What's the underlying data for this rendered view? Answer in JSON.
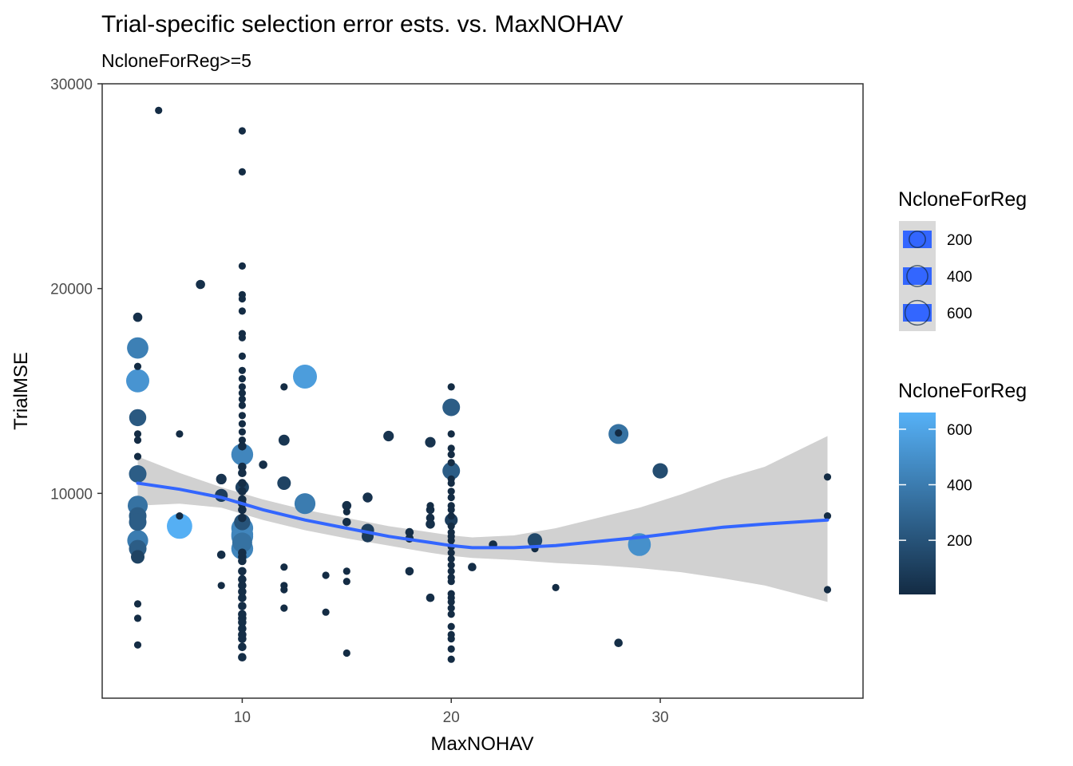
{
  "chart_data": {
    "type": "scatter",
    "title": "Trial-specific selection error ests. vs. MaxNOHAV",
    "subtitle": "NcloneForReg>=5",
    "xlabel": "MaxNOHAV",
    "ylabel": "TrialMSE",
    "xlim": [
      3.3,
      39.7
    ],
    "ylim": [
      0,
      30000
    ],
    "x_ticks": [
      {
        "value": 10,
        "label": "10"
      },
      {
        "value": 20,
        "label": "20"
      },
      {
        "value": 30,
        "label": "30"
      }
    ],
    "y_ticks": [
      {
        "value": 10000,
        "label": "10000"
      },
      {
        "value": 20000,
        "label": "20000"
      },
      {
        "value": 30000,
        "label": "30000"
      }
    ],
    "grid": false,
    "legend_position": "right",
    "colors": {
      "low": "#132b43",
      "high": "#56b1f7",
      "smooth_line": "#3366ff",
      "ribbon": "#b3b3b3"
    },
    "legends": {
      "size": {
        "title": "NcloneForReg",
        "entries": [
          {
            "label": "200",
            "value": 200
          },
          {
            "label": "400",
            "value": 400
          },
          {
            "label": "600",
            "value": 600
          }
        ]
      },
      "color": {
        "title": "NcloneForReg",
        "ticks": [
          {
            "label": "200",
            "value": 200
          },
          {
            "label": "400",
            "value": 400
          },
          {
            "label": "600",
            "value": 600
          }
        ],
        "range": [
          5,
          660
        ]
      }
    },
    "points": [
      [
        6,
        28700,
        10
      ],
      [
        10,
        27700,
        10
      ],
      [
        10,
        25700,
        10
      ],
      [
        10,
        21100,
        10
      ],
      [
        8,
        20200,
        30
      ],
      [
        10,
        19700,
        10
      ],
      [
        10,
        19500,
        10
      ],
      [
        10,
        18900,
        10
      ],
      [
        5,
        18600,
        30
      ],
      [
        10,
        17800,
        10
      ],
      [
        10,
        17600,
        10
      ],
      [
        5,
        17100,
        420
      ],
      [
        10,
        16700,
        10
      ],
      [
        5,
        16200,
        10
      ],
      [
        10,
        16000,
        10
      ],
      [
        10,
        15600,
        10
      ],
      [
        5,
        15500,
        520
      ],
      [
        13,
        15700,
        560
      ],
      [
        12,
        15200,
        10
      ],
      [
        20,
        15200,
        10
      ],
      [
        10,
        15200,
        10
      ],
      [
        10,
        14900,
        10
      ],
      [
        10,
        14600,
        10
      ],
      [
        10,
        14300,
        10
      ],
      [
        20,
        14200,
        250
      ],
      [
        5,
        13700,
        230
      ],
      [
        10,
        13800,
        10
      ],
      [
        10,
        13400,
        10
      ],
      [
        10,
        13000,
        10
      ],
      [
        7,
        12900,
        10
      ],
      [
        5,
        12900,
        10
      ],
      [
        20,
        12900,
        10
      ],
      [
        17,
        12800,
        50
      ],
      [
        5,
        12600,
        10
      ],
      [
        10,
        12600,
        10
      ],
      [
        12,
        12600,
        60
      ],
      [
        19,
        12500,
        50
      ],
      [
        10,
        12300,
        20
      ],
      [
        20,
        12200,
        10
      ],
      [
        28,
        12900,
        350
      ],
      [
        28,
        12950,
        10
      ],
      [
        10,
        11900,
        450
      ],
      [
        5,
        11800,
        10
      ],
      [
        20,
        11900,
        10
      ],
      [
        11,
        11400,
        20
      ],
      [
        20,
        11500,
        10
      ],
      [
        10,
        11300,
        20
      ],
      [
        30,
        11100,
        170
      ],
      [
        20,
        11100,
        250
      ],
      [
        5,
        10950,
        250
      ],
      [
        10,
        11000,
        20
      ],
      [
        9,
        10700,
        50
      ],
      [
        20,
        10700,
        10
      ],
      [
        12,
        10500,
        120
      ],
      [
        10,
        10500,
        20
      ],
      [
        38,
        10800,
        10
      ],
      [
        20,
        10500,
        10
      ],
      [
        10,
        10300,
        120
      ],
      [
        10,
        10100,
        20
      ],
      [
        20,
        10100,
        10
      ],
      [
        9,
        9900,
        100
      ],
      [
        16,
        9800,
        40
      ],
      [
        20,
        9800,
        10
      ],
      [
        10,
        9700,
        20
      ],
      [
        10,
        9500,
        20
      ],
      [
        5,
        9400,
        350
      ],
      [
        13,
        9500,
        400
      ],
      [
        15,
        9400,
        30
      ],
      [
        19,
        9400,
        10
      ],
      [
        20,
        9400,
        10
      ],
      [
        10,
        9200,
        20
      ],
      [
        19,
        9200,
        20
      ],
      [
        15,
        9100,
        10
      ],
      [
        20,
        9200,
        10
      ],
      [
        38,
        8900,
        10
      ],
      [
        7,
        8900,
        10
      ],
      [
        5,
        8900,
        250
      ],
      [
        10,
        8800,
        20
      ],
      [
        19,
        8800,
        20
      ],
      [
        20,
        8900,
        10
      ],
      [
        10,
        8600,
        200
      ],
      [
        20,
        8700,
        100
      ],
      [
        15,
        8600,
        20
      ],
      [
        19,
        8500,
        30
      ],
      [
        5,
        8600,
        250
      ],
      [
        20,
        8400,
        10
      ],
      [
        7,
        8400,
        650
      ],
      [
        10,
        8300,
        450
      ],
      [
        16,
        8200,
        100
      ],
      [
        18,
        8100,
        20
      ],
      [
        20,
        8100,
        10
      ],
      [
        10,
        8000,
        450
      ],
      [
        5,
        7700,
        400
      ],
      [
        16,
        7900,
        80
      ],
      [
        10,
        7900,
        450
      ],
      [
        20,
        7900,
        10
      ],
      [
        18,
        7800,
        20
      ],
      [
        24,
        7700,
        150
      ],
      [
        10,
        7600,
        350
      ],
      [
        20,
        7700,
        10
      ],
      [
        29,
        7500,
        500
      ],
      [
        5,
        7300,
        250
      ],
      [
        10,
        7300,
        450
      ],
      [
        22,
        7500,
        20
      ],
      [
        20,
        7400,
        10
      ],
      [
        24,
        7300,
        10
      ],
      [
        10,
        7100,
        20
      ],
      [
        9,
        7000,
        20
      ],
      [
        20,
        7100,
        10
      ],
      [
        5,
        6900,
        120
      ],
      [
        10,
        6900,
        20
      ],
      [
        20,
        6800,
        10
      ],
      [
        10,
        6700,
        20
      ],
      [
        12,
        6400,
        10
      ],
      [
        20,
        6500,
        10
      ],
      [
        21,
        6400,
        20
      ],
      [
        15,
        6200,
        10
      ],
      [
        18,
        6200,
        20
      ],
      [
        10,
        6200,
        20
      ],
      [
        20,
        6200,
        10
      ],
      [
        14,
        6000,
        10
      ],
      [
        20,
        5900,
        10
      ],
      [
        10,
        5800,
        20
      ],
      [
        15,
        5700,
        10
      ],
      [
        20,
        5700,
        10
      ],
      [
        9,
        5500,
        10
      ],
      [
        12,
        5500,
        10
      ],
      [
        10,
        5500,
        20
      ],
      [
        25,
        5400,
        10
      ],
      [
        12,
        5300,
        10
      ],
      [
        38,
        5300,
        10
      ],
      [
        10,
        5200,
        20
      ],
      [
        20,
        5100,
        10
      ],
      [
        19,
        4900,
        20
      ],
      [
        10,
        4900,
        20
      ],
      [
        20,
        4900,
        10
      ],
      [
        20,
        4700,
        10
      ],
      [
        5,
        4600,
        10
      ],
      [
        10,
        4500,
        20
      ],
      [
        12,
        4400,
        10
      ],
      [
        20,
        4400,
        10
      ],
      [
        14,
        4200,
        10
      ],
      [
        10,
        4100,
        20
      ],
      [
        20,
        4100,
        10
      ],
      [
        5,
        3900,
        10
      ],
      [
        10,
        3900,
        20
      ],
      [
        10,
        3700,
        20
      ],
      [
        20,
        3500,
        10
      ],
      [
        10,
        3400,
        20
      ],
      [
        10,
        3100,
        20
      ],
      [
        20,
        3100,
        10
      ],
      [
        20,
        2900,
        10
      ],
      [
        10,
        2900,
        20
      ],
      [
        28,
        2700,
        20
      ],
      [
        5,
        2600,
        10
      ],
      [
        10,
        2500,
        20
      ],
      [
        20,
        2400,
        10
      ],
      [
        15,
        2200,
        10
      ],
      [
        10,
        2000,
        20
      ],
      [
        20,
        1900,
        10
      ]
    ],
    "smooth": {
      "method": "loess",
      "x": [
        5,
        7,
        9,
        11,
        13,
        15,
        17,
        19,
        20,
        21,
        23,
        25,
        27,
        29,
        31,
        33,
        35,
        38
      ],
      "y": [
        10500,
        10200,
        9800,
        9200,
        8700,
        8300,
        7900,
        7600,
        7450,
        7350,
        7350,
        7450,
        7650,
        7850,
        8100,
        8350,
        8500,
        8700
      ],
      "lower": [
        9400,
        9500,
        9300,
        8700,
        8200,
        7800,
        7450,
        7100,
        6950,
        6850,
        6750,
        6600,
        6500,
        6350,
        6150,
        5850,
        5500,
        4700
      ],
      "upper": [
        11800,
        11000,
        10300,
        9700,
        9200,
        8800,
        8400,
        8100,
        7950,
        7850,
        7950,
        8300,
        8800,
        9300,
        9950,
        10700,
        11300,
        12800
      ]
    }
  }
}
